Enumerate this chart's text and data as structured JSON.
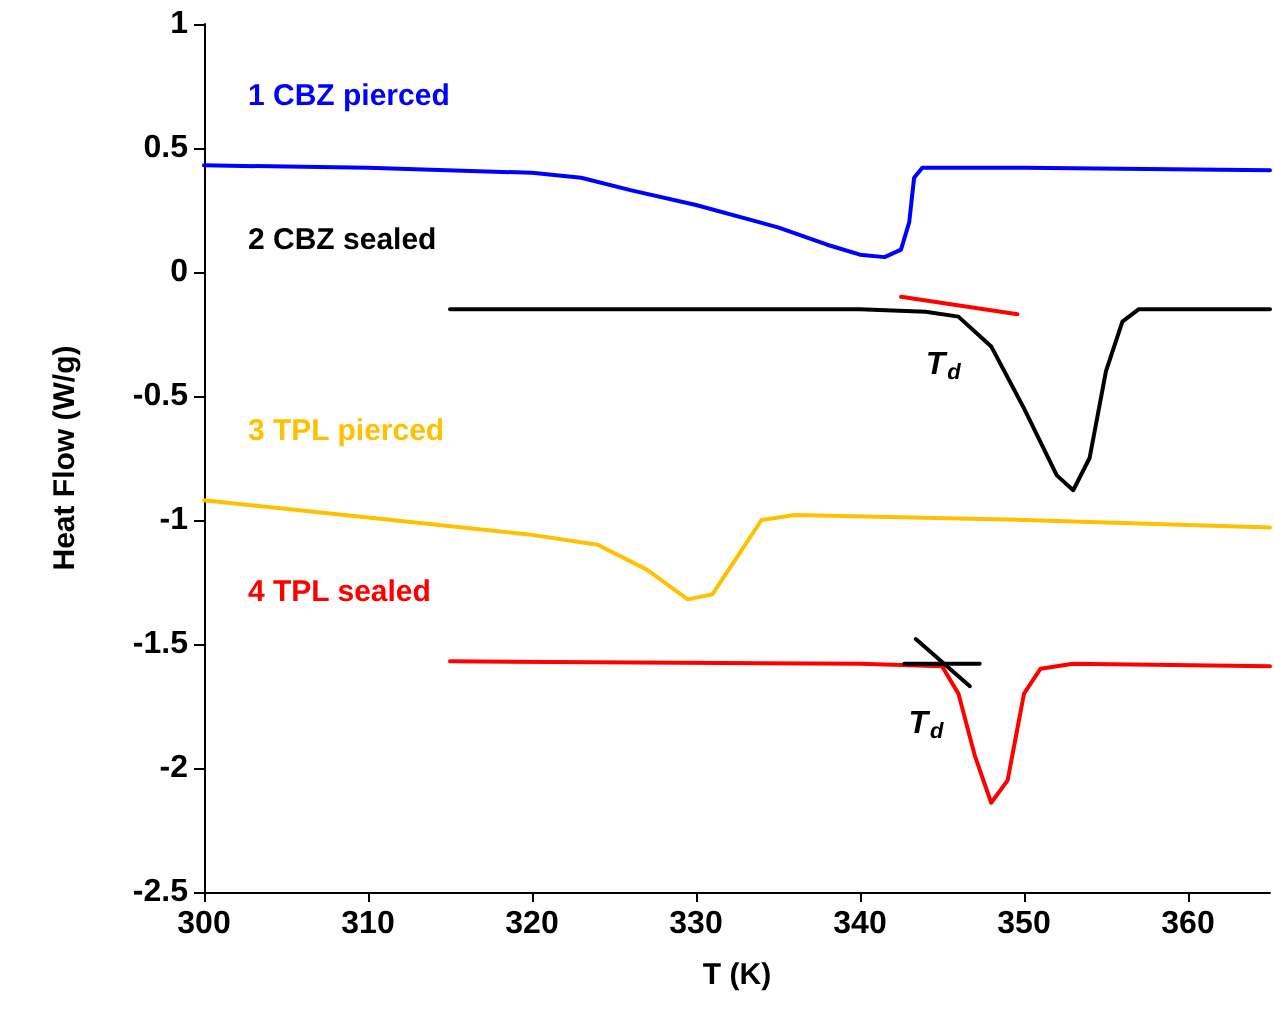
{
  "chart_data": {
    "type": "line",
    "xlabel": "T (K)",
    "ylabel": "Heat Flow (W/g)",
    "xlim": [
      300,
      365
    ],
    "xticks": [
      300,
      310,
      320,
      330,
      340,
      350,
      360
    ],
    "ylim": [
      -2.5,
      1
    ],
    "yticks": [
      -2.5,
      -2,
      -1.5,
      -1,
      -0.5,
      0,
      0.5,
      1
    ],
    "grid": false,
    "marker": "none",
    "line_style": "solid",
    "series": [
      {
        "name": "1 CBZ pierced",
        "color": "#0000ff",
        "x": [
          300,
          310,
          320,
          323,
          326,
          330,
          335,
          338,
          340,
          341.5,
          342.5,
          343,
          343.3,
          343.8,
          350,
          365
        ],
        "values": [
          0.43,
          0.42,
          0.4,
          0.38,
          0.33,
          0.27,
          0.18,
          0.11,
          0.07,
          0.06,
          0.09,
          0.2,
          0.38,
          0.42,
          0.42,
          0.41
        ]
      },
      {
        "name": "2 CBZ sealed",
        "color": "#000000",
        "x": [
          315,
          340,
          344,
          346,
          348,
          350,
          352,
          353,
          354,
          355,
          356,
          357,
          365
        ],
        "values": [
          -0.15,
          -0.15,
          -0.16,
          -0.18,
          -0.3,
          -0.55,
          -0.82,
          -0.88,
          -0.75,
          -0.4,
          -0.2,
          -0.15,
          -0.15
        ]
      },
      {
        "name": "3 TPL pierced",
        "color": "#ffc000",
        "x": [
          300,
          310,
          320,
          324,
          327,
          329.5,
          331,
          332.5,
          334,
          336,
          350,
          365
        ],
        "values": [
          -0.92,
          -0.99,
          -1.06,
          -1.1,
          -1.2,
          -1.32,
          -1.3,
          -1.15,
          -1.0,
          -0.98,
          -1.0,
          -1.03
        ]
      },
      {
        "name": "4 TPL sealed",
        "color": "#ff0000",
        "x": [
          315,
          340,
          345,
          346,
          347,
          348,
          349,
          350,
          351,
          353,
          365
        ],
        "values": [
          -1.57,
          -1.58,
          -1.59,
          -1.7,
          -1.95,
          -2.14,
          -2.05,
          -1.7,
          -1.6,
          -1.58,
          -1.59
        ]
      },
      {
        "color": "#ff0000",
        "x": [
          342.5,
          349.6
        ],
        "values": [
          -0.1,
          -0.17
        ]
      },
      {
        "color": "#000000",
        "x": [
          342.7,
          347.3
        ],
        "values": [
          -1.58,
          -1.58
        ]
      },
      {
        "color": "#000000",
        "x": [
          343.4,
          346.7
        ],
        "values": [
          -1.48,
          -1.67
        ]
      }
    ],
    "annotations": [
      "T$_{d}$",
      "T$_{d}$"
    ]
  }
}
